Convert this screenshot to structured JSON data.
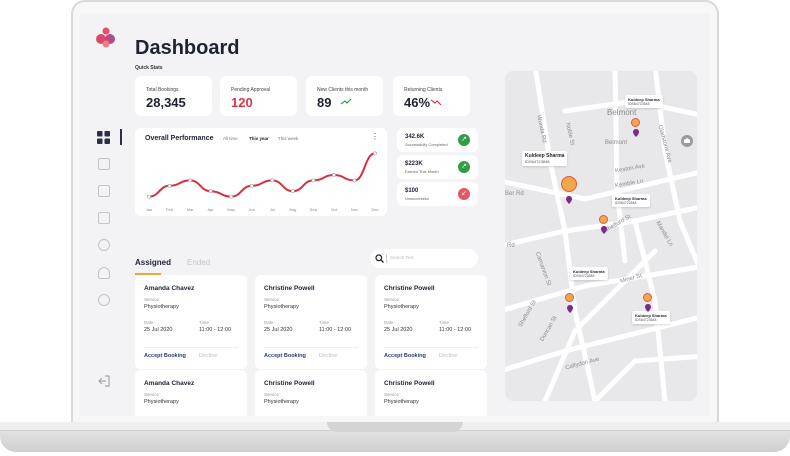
{
  "page": {
    "title": "Dashboard",
    "quick_stats_label": "Quick Stats"
  },
  "stats": [
    {
      "label": "Total Bookings",
      "value": "28,345"
    },
    {
      "label": "Pending Approval",
      "value": "120"
    },
    {
      "label": "New Clients this month",
      "value": "89"
    },
    {
      "label": "Returning Clients",
      "value": "46%"
    }
  ],
  "performance": {
    "title": "Overall Performance",
    "tabs": [
      "All time",
      "This year",
      "This week"
    ],
    "active_tab": "This year",
    "more_icon": "more-vertical-icon"
  },
  "chart_data": {
    "type": "line",
    "categories": [
      "Jan",
      "Feb",
      "Mar",
      "Apr",
      "May",
      "Jun",
      "Jul",
      "Aug",
      "Sep",
      "Oct",
      "Nov",
      "Dec"
    ],
    "values": [
      1,
      3,
      4,
      2,
      1,
      3,
      4,
      2,
      4,
      5,
      4,
      9
    ],
    "ylim": [
      0,
      10
    ],
    "line_color": "#d6303f"
  },
  "metrics": [
    {
      "value": "342.6K",
      "label": "Successfully Completed",
      "color": "#2f9e44",
      "icon": "arrow-up-right-icon"
    },
    {
      "value": "$223K",
      "label": "Earned This Month",
      "color": "#2f9e44",
      "icon": "arrow-up-right-icon"
    },
    {
      "value": "$100",
      "label": "Unsuccessful",
      "color": "#e25766",
      "icon": "arrow-down-left-icon"
    }
  ],
  "tabs": {
    "assigned": "Assigned",
    "ended": "Ended"
  },
  "search": {
    "placeholder": "Search Text"
  },
  "booking_labels": {
    "service": "Service",
    "date": "Date",
    "time": "Time",
    "accept": "Accept Booking",
    "decline": "Decline"
  },
  "bookings": [
    {
      "name": "Amanda Chavez",
      "service": "Physiotherapy",
      "date": "25 Jul 2020",
      "time": "11:00 - 12:00"
    },
    {
      "name": "Christine Powell",
      "service": "Physiotherapy",
      "date": "25 Jul 2020",
      "time": "11:00 - 12:00"
    },
    {
      "name": "Christine Powell",
      "service": "Physiotherapy",
      "date": "25 Jul 2020",
      "time": "11:00 - 12:00"
    }
  ],
  "bookings_row2": [
    {
      "name": "Amanda Chavez",
      "service": "Physiotherapy"
    },
    {
      "name": "Christine Powell",
      "service": "Physiotherapy"
    },
    {
      "name": "Christine Powell",
      "service": "Physiotherapy"
    }
  ],
  "map": {
    "streets": [
      "Belmont",
      "Wunda Rd",
      "Noble St",
      "Belmont",
      "Keston Ave",
      "Kemble Ln",
      "Gladstone Ave",
      "Mandel Ln",
      "Shelford St",
      "Rd",
      "Carnarvon St",
      "Miner St",
      "Shelford St",
      "Duncan St",
      "Callydon Ave",
      "Ber Rd"
    ],
    "pins": [
      {
        "name": "Kuldeep Sharma",
        "phone": "IDS64723648"
      },
      {
        "name": "Kuldeep Sharma",
        "phone": "IDS64723648"
      },
      {
        "name": "Kuldeep Sharma",
        "phone": "IDS64723648"
      },
      {
        "name": "Kuldeep Sharma",
        "phone": "IDS64723648"
      },
      {
        "name": "Kuldeep Sharma",
        "phone": "IDS64723648"
      }
    ]
  },
  "colors": {
    "accent": "#f0a53b",
    "danger": "#e0344d",
    "navy": "#1e2233",
    "link": "#2d3a7a"
  }
}
